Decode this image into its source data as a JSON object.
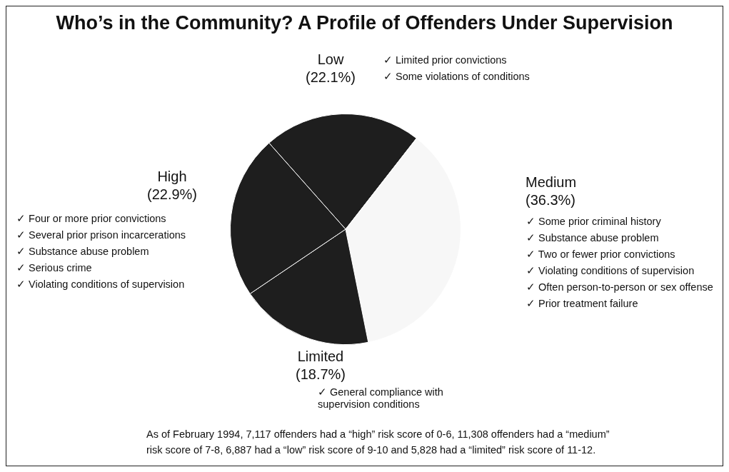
{
  "chart_data": {
    "type": "pie",
    "title": "Who’s in the Community? A Profile of Offenders Under Supervision",
    "categories": [
      "Low",
      "Medium",
      "Limited",
      "High"
    ],
    "values": [
      22.1,
      36.3,
      18.7,
      22.9
    ],
    "value_labels": [
      "(22.1%)",
      "(36.3%)",
      "(18.7%)",
      "(22.9%)"
    ],
    "colors": [
      "#1e1e1e",
      "#f7f7f7",
      "#1e1e1e",
      "#1e1e1e"
    ],
    "legend": false,
    "annotations": [
      "✓ Limited prior convictions",
      "✓ Some violations of conditions",
      "✓ Some prior criminal history",
      "✓ Substance abuse problem",
      "✓ Two or fewer prior convictions",
      "✓ Violating conditions of supervision",
      "✓ Often person-to-person or sex offense",
      "✓ Prior treatment failure",
      "✓ General compliance with supervision conditions",
      "✓ Four or more prior convictions",
      "✓ Several prior prison incarcerations",
      "✓ Substance abuse problem",
      "✓ Serious crime",
      "✓ Violating conditions of supervision",
      "As of February 1994, 7,117 offenders had a “high” risk score of 0-6, 11,308 offenders had a “medium” risk score of 7-8, 6,887 had a “low” risk score of 9-10 and 5,828 had a “limited” risk score of 11-12."
    ]
  }
}
